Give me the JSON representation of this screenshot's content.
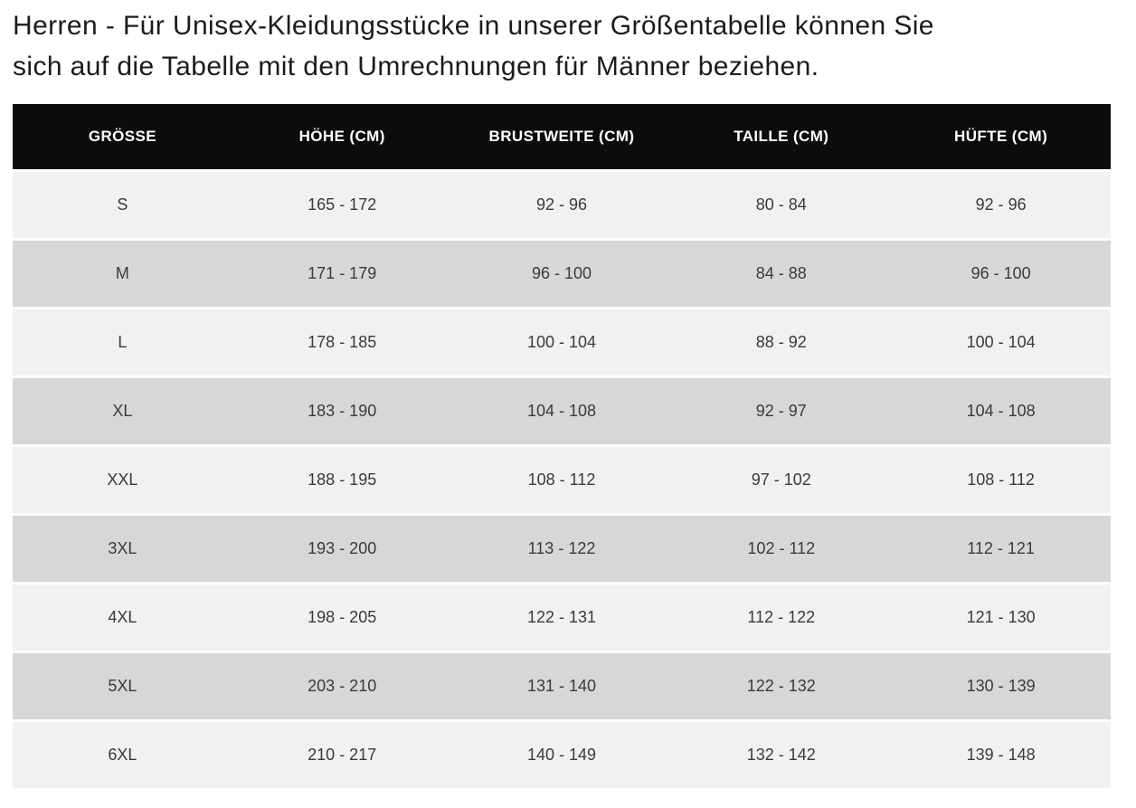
{
  "intro": {
    "line1": "Herren - Für Unisex-Kleidungsstücke in unserer Größentabelle können Sie",
    "line2": "sich auf die Tabelle mit den Umrechnungen für Männer beziehen."
  },
  "table": {
    "headers": [
      "GRÖSSE",
      "HÖHE (CM)",
      "BRUSTWEITE (CM)",
      "TAILLE (CM)",
      "HÜFTE (CM)"
    ],
    "rows": [
      [
        "S",
        "165 - 172",
        "92 - 96",
        "80 - 84",
        "92 - 96"
      ],
      [
        "M",
        "171 - 179",
        "96 - 100",
        "84 - 88",
        "96 - 100"
      ],
      [
        "L",
        "178 - 185",
        "100 - 104",
        "88 - 92",
        "100 - 104"
      ],
      [
        "XL",
        "183 - 190",
        "104 - 108",
        "92 - 97",
        "104 - 108"
      ],
      [
        "XXL",
        "188 - 195",
        "108 - 112",
        "97 - 102",
        "108 - 112"
      ],
      [
        "3XL",
        "193 - 200",
        "113 - 122",
        "102 - 112",
        "112 - 121"
      ],
      [
        "4XL",
        "198 - 205",
        "122 - 131",
        "112 - 122",
        "121 - 130"
      ],
      [
        "5XL",
        "203 - 210",
        "131 - 140",
        "122 - 132",
        "130 - 139"
      ],
      [
        "6XL",
        "210 - 217",
        "140 - 149",
        "132 - 142",
        "139 - 148"
      ]
    ]
  },
  "colors": {
    "header_bg": "#0c0c0c",
    "header_text": "#ffffff",
    "row_light": "#f1f1f1",
    "row_dark": "#d7d7d7",
    "cell_text": "#3a3a3a"
  }
}
